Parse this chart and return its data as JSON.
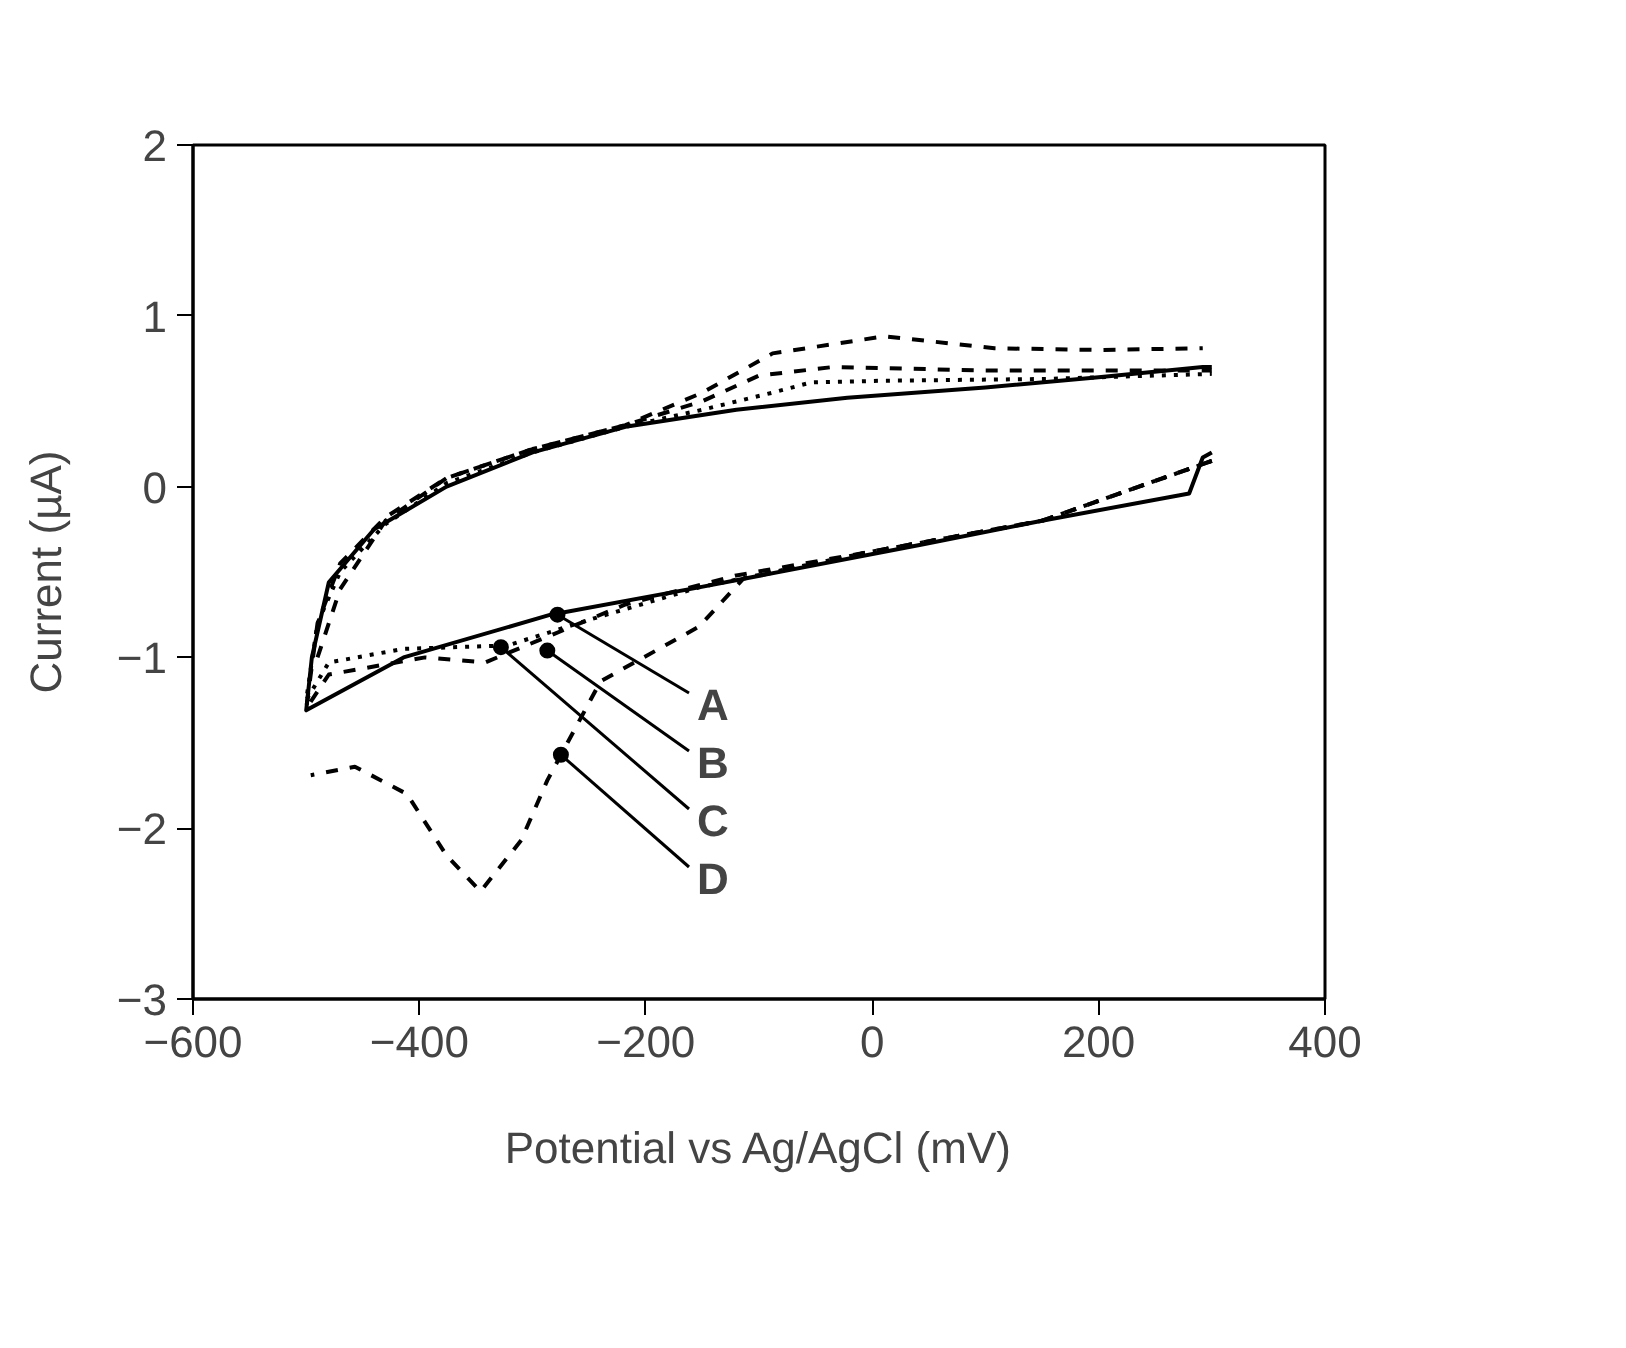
{
  "chart_data": {
    "type": "line",
    "xlabel": "Potential vs Ag/AgCl (mV)",
    "ylabel": "Current (µA)",
    "xlim": [
      -600,
      400
    ],
    "xticks": [
      -600,
      -400,
      -200,
      0,
      200,
      400
    ],
    "ylim": [
      -3,
      2
    ],
    "yticks": [
      -3,
      -2,
      -1,
      0,
      1,
      2
    ],
    "grid": false,
    "marker": "none",
    "series": [
      {
        "color": "#000000",
        "line_style": "solid",
        "x": [
          300,
          292,
          280,
          150,
          43,
          -153,
          -284,
          -414,
          -500,
          -495,
          -480,
          -440,
          -376,
          -300,
          -218,
          -120,
          -22,
          100,
          200,
          292,
          300
        ],
        "values": [
          0.2,
          0.17,
          -0.04,
          -0.2,
          -0.34,
          -0.59,
          -0.75,
          -1.0,
          -1.31,
          -1.0,
          -0.56,
          -0.25,
          0.0,
          0.2,
          0.35,
          0.45,
          0.52,
          0.58,
          0.64,
          0.7,
          0.7
        ]
      },
      {
        "color": "#000000",
        "line_style": "dotted",
        "x": [
          300,
          150,
          0,
          -153,
          -250,
          -322,
          -414,
          -480,
          -500,
          -490,
          -470,
          -430,
          -376,
          -300,
          -218,
          -150,
          -88,
          -54,
          11,
          150,
          300
        ],
        "values": [
          0.15,
          -0.2,
          -0.38,
          -0.59,
          -0.78,
          -0.93,
          -0.95,
          -1.03,
          -1.25,
          -0.8,
          -0.5,
          -0.22,
          0.02,
          0.2,
          0.35,
          0.45,
          0.55,
          0.61,
          0.62,
          0.63,
          0.66
        ]
      },
      {
        "color": "#000000",
        "line_style": "dashed",
        "x": [
          300,
          150,
          0,
          -120,
          -218,
          -342,
          -395,
          -480,
          -500,
          -490,
          -470,
          -430,
          -376,
          -300,
          -218,
          -150,
          -100,
          -35,
          100,
          300
        ],
        "values": [
          0.15,
          -0.2,
          -0.38,
          -0.52,
          -0.69,
          -1.03,
          -1.0,
          -1.1,
          -1.3,
          -0.8,
          -0.45,
          -0.18,
          0.05,
          0.22,
          0.36,
          0.5,
          0.65,
          0.7,
          0.68,
          0.68
        ]
      },
      {
        "color": "#000000",
        "line_style": "dashed",
        "x": [
          300,
          150,
          0,
          -114,
          -153,
          -240,
          -287,
          -310,
          -346,
          -376,
          -411,
          -457,
          -496,
          null,
          -490,
          -470,
          -430,
          -376,
          -300,
          -218,
          -150,
          -88,
          11,
          108,
          200,
          292
        ],
        "values": [
          0.15,
          -0.2,
          -0.38,
          -0.54,
          -0.82,
          -1.14,
          -1.72,
          -2.07,
          -2.37,
          -2.16,
          -1.8,
          -1.64,
          -1.69,
          null,
          -1.0,
          -0.6,
          -0.2,
          0.05,
          0.22,
          0.36,
          0.55,
          0.78,
          0.88,
          0.81,
          0.8,
          0.81
        ]
      }
    ],
    "annotations": [
      {
        "text": "A",
        "x": -278,
        "y": -0.75
      },
      {
        "text": "B",
        "x": -287,
        "y": -0.96
      },
      {
        "text": "C",
        "x": -328,
        "y": -0.94
      },
      {
        "text": "D",
        "x": -275,
        "y": -1.57
      }
    ]
  }
}
